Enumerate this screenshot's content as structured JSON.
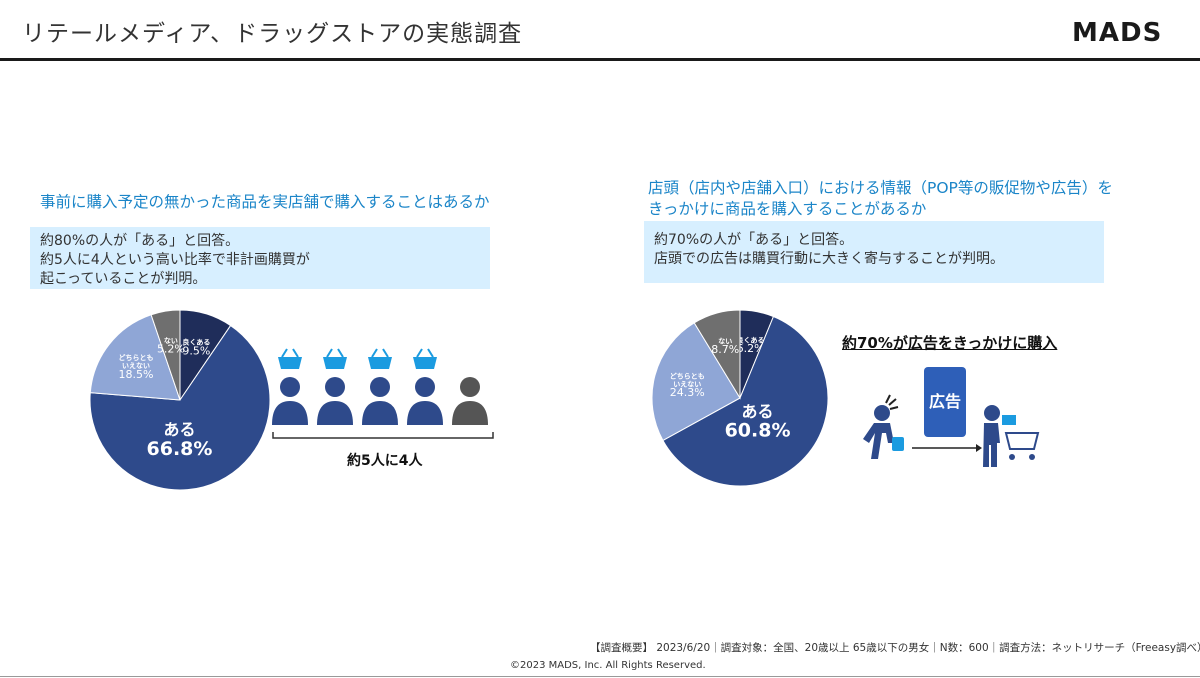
{
  "header": {
    "title": "リテールメディア、ドラッグストアの実態調査",
    "logo_text": "MADS"
  },
  "colors": {
    "accent": "#1b85c8",
    "box_bg": "#d7efff",
    "dark_navy": "#1f2d5a",
    "primary": "#2e4a8b",
    "light": "#8fa6d6",
    "gray": "#6f6f6f"
  },
  "left": {
    "question": "事前に購入予定の無かった商品を実店舗で購入することはあるか",
    "summary": [
      "約80%の人が「ある」と回答。",
      "約5人に4人という高い比率で非計画購買が",
      "起こっていることが判明。"
    ],
    "caption": "約5人に4人",
    "icons": [
      "basket-icon",
      "person-icon"
    ]
  },
  "right": {
    "question": [
      "店頭（店内や店舗入口）における情報（POP等の販促物や広告）を",
      "きっかけに商品を購入することがあるか"
    ],
    "summary": [
      "約70%の人が「ある」と回答。",
      "店頭での広告は購買行動に大きく寄与することが判明。"
    ],
    "callout": "約70%が広告をきっかけに購入",
    "ad_sign": "広告",
    "icons": [
      "person-shopping-bag-icon",
      "arrow-right-icon",
      "person-cart-icon"
    ]
  },
  "chart_data": [
    {
      "type": "pie",
      "title": "事前に購入予定の無かった商品を実店舗で購入することはあるか",
      "slices": [
        {
          "name": "良くある",
          "value": 9.5,
          "color": "#1f2d5a",
          "label": "9.5%"
        },
        {
          "name": "ある",
          "value": 66.8,
          "color": "#2e4a8b",
          "label": "66.8%"
        },
        {
          "name": "どちらとも いえない",
          "value": 18.5,
          "color": "#8fa6d6",
          "label": "18.5%"
        },
        {
          "name": "ない",
          "value": 5.2,
          "color": "#6f6f6f",
          "label": "5.2%"
        }
      ]
    },
    {
      "type": "pie",
      "title": "店頭（店内や店舗入口）における情報（POP等の販促物や広告）をきっかけに商品を購入することがあるか",
      "slices": [
        {
          "name": "良くある",
          "value": 6.2,
          "color": "#1f2d5a",
          "label": "6.2%"
        },
        {
          "name": "ある",
          "value": 60.8,
          "color": "#2e4a8b",
          "label": "60.8%"
        },
        {
          "name": "どちらとも いえない",
          "value": 24.3,
          "color": "#8fa6d6",
          "label": "24.3%"
        },
        {
          "name": "ない",
          "value": 8.7,
          "color": "#6f6f6f",
          "label": "8.7%"
        }
      ]
    }
  ],
  "footer": {
    "note": "【調査概要】 2023/6/20｜調査対象：全国、20歳以上 65歳以下の男女｜N数：600｜調査方法：ネットリサーチ（Freeasy調べ）",
    "copyright": "©2023 MADS, Inc. All Rights Reserved."
  }
}
